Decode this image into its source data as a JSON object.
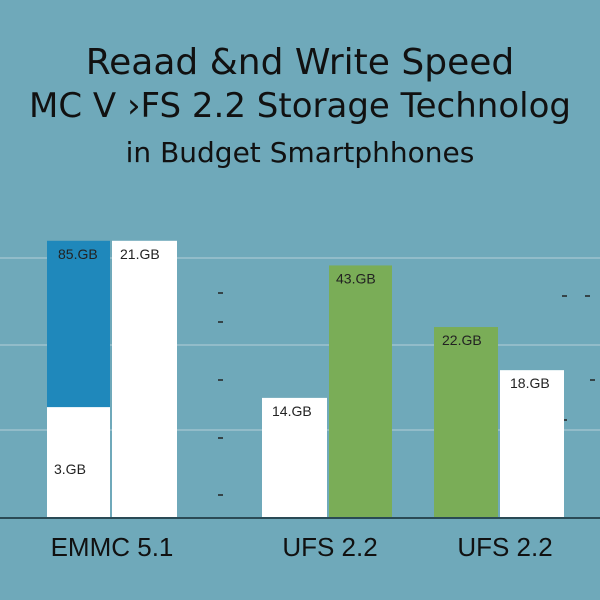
{
  "chart_data": {
    "type": "bar",
    "title_lines": [
      "Reaad &nd  Write Speed",
      "MC V ›FS 2.2 Storage Technolog",
      "in Budget Smartphhones"
    ],
    "categories": [
      "EMMC 5.1",
      "UFS 2.2",
      "UFS 2.2"
    ],
    "ylim": [
      0,
      100
    ],
    "bars": [
      {
        "category": 0,
        "value": 36,
        "label": "3.GB",
        "color": "#ffffff"
      },
      {
        "category": 0,
        "value": 90,
        "label": "85.GB",
        "color": "#1f88bb"
      },
      {
        "category": 0,
        "value": 90,
        "label": "21.GB",
        "color": "#ffffff"
      },
      {
        "category": 1,
        "value": 39,
        "label": "14.GB",
        "color": "#ffffff"
      },
      {
        "category": 1,
        "value": 82,
        "label": "43.GB",
        "color": "#7aad57"
      },
      {
        "category": 2,
        "value": 62,
        "label": "22.GB",
        "color": "#7aad57"
      },
      {
        "category": 2,
        "value": 48,
        "label": "18.GB",
        "color": "#ffffff"
      }
    ],
    "grid": true,
    "background": "#6fa9ba",
    "gridline_color": "#9ec3ce"
  }
}
